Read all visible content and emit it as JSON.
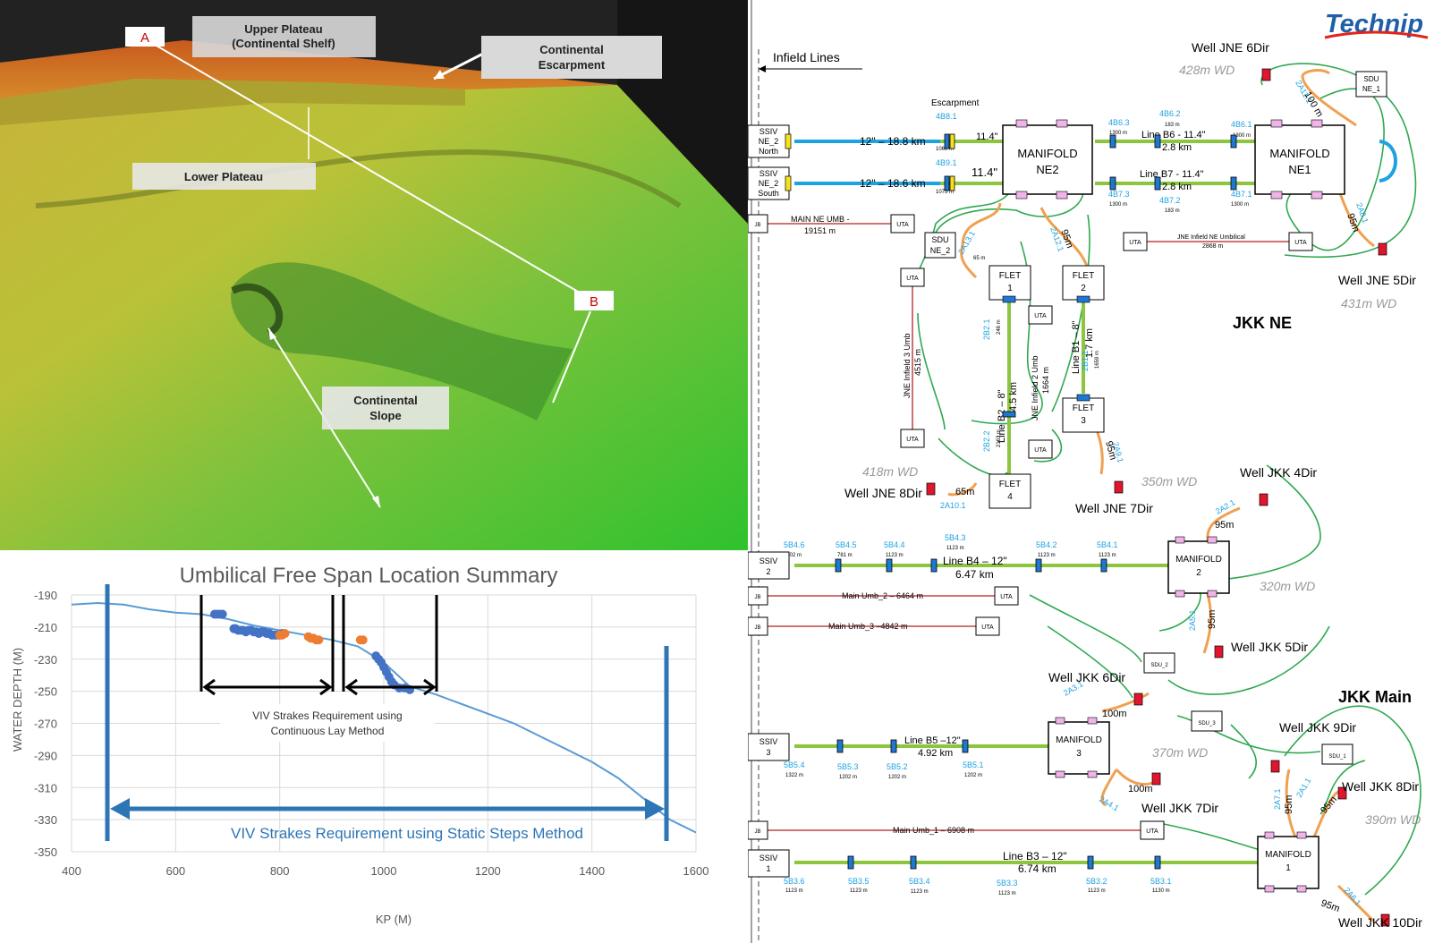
{
  "terrain": {
    "point_a": "A",
    "point_b": "B",
    "upper_plateau": [
      "Upper Plateau",
      "(Continental Shelf)"
    ],
    "escarpment": [
      "Continental",
      "Escarpment"
    ],
    "lower_plateau": "Lower Plateau",
    "slope": [
      "Continental",
      "Slope"
    ]
  },
  "chart_data": {
    "type": "line",
    "title": "Umbilical Free Span Location Summary",
    "xlabel": "KP (M)",
    "ylabel": "WATER DEPTH (M)",
    "xlim": [
      400,
      1600
    ],
    "ylim": [
      -350,
      -190
    ],
    "xticks": [
      "400",
      "600",
      "800",
      "1000",
      "1200",
      "1400",
      "1600"
    ],
    "yticks": [
      "-190",
      "-210",
      "-230",
      "-250",
      "-270",
      "-290",
      "-310",
      "-330",
      "-350"
    ],
    "grid": true,
    "profile": {
      "color": "#5b9bd5",
      "x": [
        400,
        450,
        500,
        550,
        600,
        650,
        700,
        750,
        800,
        850,
        900,
        950,
        1000,
        1050,
        1100,
        1150,
        1200,
        1250,
        1300,
        1350,
        1400,
        1450,
        1500,
        1550,
        1600
      ],
      "y": [
        -196,
        -195,
        -196,
        -199,
        -201,
        -202,
        -205,
        -209,
        -212,
        -215,
        -218,
        -222,
        -232,
        -247,
        -252,
        -258,
        -264,
        -270,
        -278,
        -286,
        -294,
        -304,
        -317,
        -330,
        -338
      ]
    },
    "spans_blue": {
      "color": "#4472c4",
      "x": [
        675,
        680,
        685,
        690,
        712,
        715,
        720,
        725,
        730,
        735,
        740,
        745,
        750,
        755,
        760,
        765,
        770,
        775,
        780,
        785,
        790,
        795,
        800,
        805,
        985,
        990,
        995,
        1000,
        1005,
        1010,
        1015,
        1020,
        1030,
        1040,
        1050
      ],
      "y": [
        -202,
        -202,
        -202,
        -202,
        -211,
        -211,
        -212,
        -212,
        -212,
        -213,
        -212,
        -212,
        -213,
        -213,
        -214,
        -213,
        -213,
        -214,
        -214,
        -215,
        -215,
        -215,
        -215,
        -214,
        -228,
        -230,
        -232,
        -235,
        -238,
        -241,
        -244,
        -246,
        -248,
        -248,
        -249
      ]
    },
    "spans_orange": {
      "color": "#ed7d31",
      "x": [
        800,
        805,
        810,
        855,
        860,
        865,
        870,
        875,
        955,
        960
      ],
      "y": [
        -215,
        -215,
        -214,
        -216,
        -217,
        -217,
        -218,
        -218,
        -218,
        -218
      ]
    },
    "annotations": {
      "continuous": "VIV Strakes Requirement using\nContinuous Lay Method",
      "static": "VIV Strakes Requirement using Static Steps Method"
    }
  },
  "schematic": {
    "logo": "Technip",
    "infield_lines": "Infield Lines",
    "escarpment": "Escarpment",
    "section_ne": "JKK NE",
    "section_main": "JKK Main",
    "manifolds": [
      {
        "l1": "MANIFOLD",
        "l2": "NE2"
      },
      {
        "l1": "MANIFOLD",
        "l2": "NE1"
      },
      {
        "l1": "MANIFOLD",
        "l2": "2"
      },
      {
        "l1": "MANIFOLD",
        "l2": "3"
      },
      {
        "l1": "MANIFOLD",
        "l2": "1"
      }
    ],
    "ssiv": [
      {
        "l1": "SSIV",
        "l2": "NE_2",
        "l3": "North"
      },
      {
        "l1": "SSIV",
        "l2": "NE_2",
        "l3": "South"
      },
      {
        "l1": "SSIV",
        "l2": "2"
      },
      {
        "l1": "SSIV",
        "l2": "3"
      },
      {
        "l1": "SSIV",
        "l2": "1"
      }
    ],
    "flets": [
      {
        "l1": "FLET",
        "l2": "1"
      },
      {
        "l1": "FLET",
        "l2": "2"
      },
      {
        "l1": "FLET",
        "l2": "3"
      },
      {
        "l1": "FLET",
        "l2": "4"
      }
    ],
    "sdu": [
      {
        "l1": "SDU",
        "l2": "NE_1"
      },
      {
        "l1": "SDU",
        "l2": "NE_2"
      },
      {
        "l1": "SDU_2"
      },
      {
        "l1": "SDU_3"
      },
      {
        "l1": "SDU_1"
      }
    ],
    "uta": "UTA",
    "jb": "JB",
    "wells": [
      {
        "name": "Well JNE 6Dir",
        "wd": "428m WD"
      },
      {
        "name": "Well JNE 5Dir",
        "wd": "431m WD"
      },
      {
        "name": "Well JNE 8Dir",
        "wd": "418m WD"
      },
      {
        "name": "Well JNE 7Dir",
        "wd": "350m WD"
      },
      {
        "name": "Well JKK 4Dir",
        "wd": "320m WD"
      },
      {
        "name": "Well JKK 5Dir"
      },
      {
        "name": "Well JKK 6Dir",
        "wd": "370m WD"
      },
      {
        "name": "Well JKK 7Dir"
      },
      {
        "name": "Well JKK 9Dir"
      },
      {
        "name": "Well JKK 8Dir",
        "wd": "390m WD"
      },
      {
        "name": "Well JKK 10Dir"
      }
    ],
    "flowlines": {
      "ne2_north": "12\" – 18.8 km",
      "ne2_south": "12\" – 18.6 km",
      "b6": [
        "Line B6 - 11.4\"",
        "2.8 km"
      ],
      "b7": [
        "Line B7 - 11.4\"",
        "2.8 km"
      ],
      "b4": [
        "Line B4 – 12\"",
        "6.47 km"
      ],
      "b5": [
        "Line B5 –12\"",
        "4.92 km"
      ],
      "b3": [
        "Line B3 – 12\"",
        "6.74 km"
      ],
      "b1": [
        "Line B1 – 8\"",
        "1.7 km"
      ],
      "b2": [
        "Line B2 – 8\"",
        "4.5 km"
      ],
      "inch114": "11.4\"",
      "inch114b": "11.4\""
    },
    "umbilicals": {
      "main_ne": [
        "MAIN NE UMB -",
        "19151 m"
      ],
      "jne_infield": "JNE Infield NE Umbilical",
      "jne_infield_len": "2868 m",
      "infield3": [
        "JNE Infield 3 Umb",
        "4515 m"
      ],
      "infield2": [
        "JNE Infield 2 Umb",
        "1664 m"
      ],
      "umb2": "Main Umb_2 – 6464 m",
      "umb3": "Main Umb_3 –4842 m",
      "umb1": "Main Umb_1 – 6908 m"
    },
    "tags": {
      "t4b81": "4B8.1",
      "t4b91": "4B9.1",
      "t4b63": "4B6.3",
      "t4b62": "4B6.2",
      "t4b61": "4B6.1",
      "t4b73": "4B7.3",
      "t4b72": "4B7.2",
      "t4b71": "4B7.1",
      "t2a111": "2A11.1",
      "t2a81": "2A8.1",
      "t2a131": "2A13.1",
      "t2a121": "2A12.1",
      "t2b21": "2B2.1",
      "t2b22": "2B2.2",
      "t2b11": "2B1.1",
      "t2a91": "2A9.1",
      "t2a101": "2A10.1",
      "t2a21": "2A2.1",
      "t2a51": "2A5.1",
      "t2a31": "2A3.1",
      "t2a41": "2A4.1",
      "t2a71": "2A7.1",
      "t2a11": "2A1.1",
      "t2a61": "2A6.1",
      "t5b46": "5B4.6",
      "t5b45": "5B4.5",
      "t5b44": "5B4.4",
      "t5b43": "5B4.3",
      "t5b42": "5B4.2",
      "t5b41": "5B4.1",
      "t5b54": "5B5.4",
      "t5b53": "5B5.3",
      "t5b52": "5B5.2",
      "t5b51": "5B5.1",
      "t5b36": "5B3.6",
      "t5b35": "5B3.5",
      "t5b34": "5B3.4",
      "t5b33": "5B3.3",
      "t5b32": "5B3.2",
      "t5b31": "5B3.1"
    },
    "lengths": {
      "m1060": "1060 m",
      "m1075": "1075 m",
      "m1300a": "1300 m",
      "m183a": "183 m",
      "m1300b": "1300 m",
      "m1300c": "1300 m",
      "m183b": "183 m",
      "m1300d": "1300 m",
      "m65": "65 m",
      "m246": "246 m",
      "m2163": "2163 m",
      "m1659": "1659 m",
      "m1202a": "1202 m",
      "m781": "781 m",
      "m1123a": "1123 m",
      "m1123b": "1123 m",
      "m1123c": "1123 m",
      "m1123d": "1123 m",
      "m1322": "1322 m",
      "m1202b": "1202 m",
      "m1202c": "1202 m",
      "m1202d": "1202 m",
      "m1123e": "1123 m",
      "m1123f": "1123 m",
      "m1123g": "1123 m",
      "m1123h": "1123 m",
      "m1123i": "1123 m",
      "m1130": "1130 m",
      "j100a": "100 m",
      "j95a": "95m",
      "j95b": "95m",
      "j65": "65m",
      "j95c": "95m",
      "j95d": "95m",
      "j95e": "95m",
      "j100b": "100m",
      "j100c": "100m",
      "j95f": "95m",
      "j95g": "95m",
      "j95h": "95m"
    }
  }
}
